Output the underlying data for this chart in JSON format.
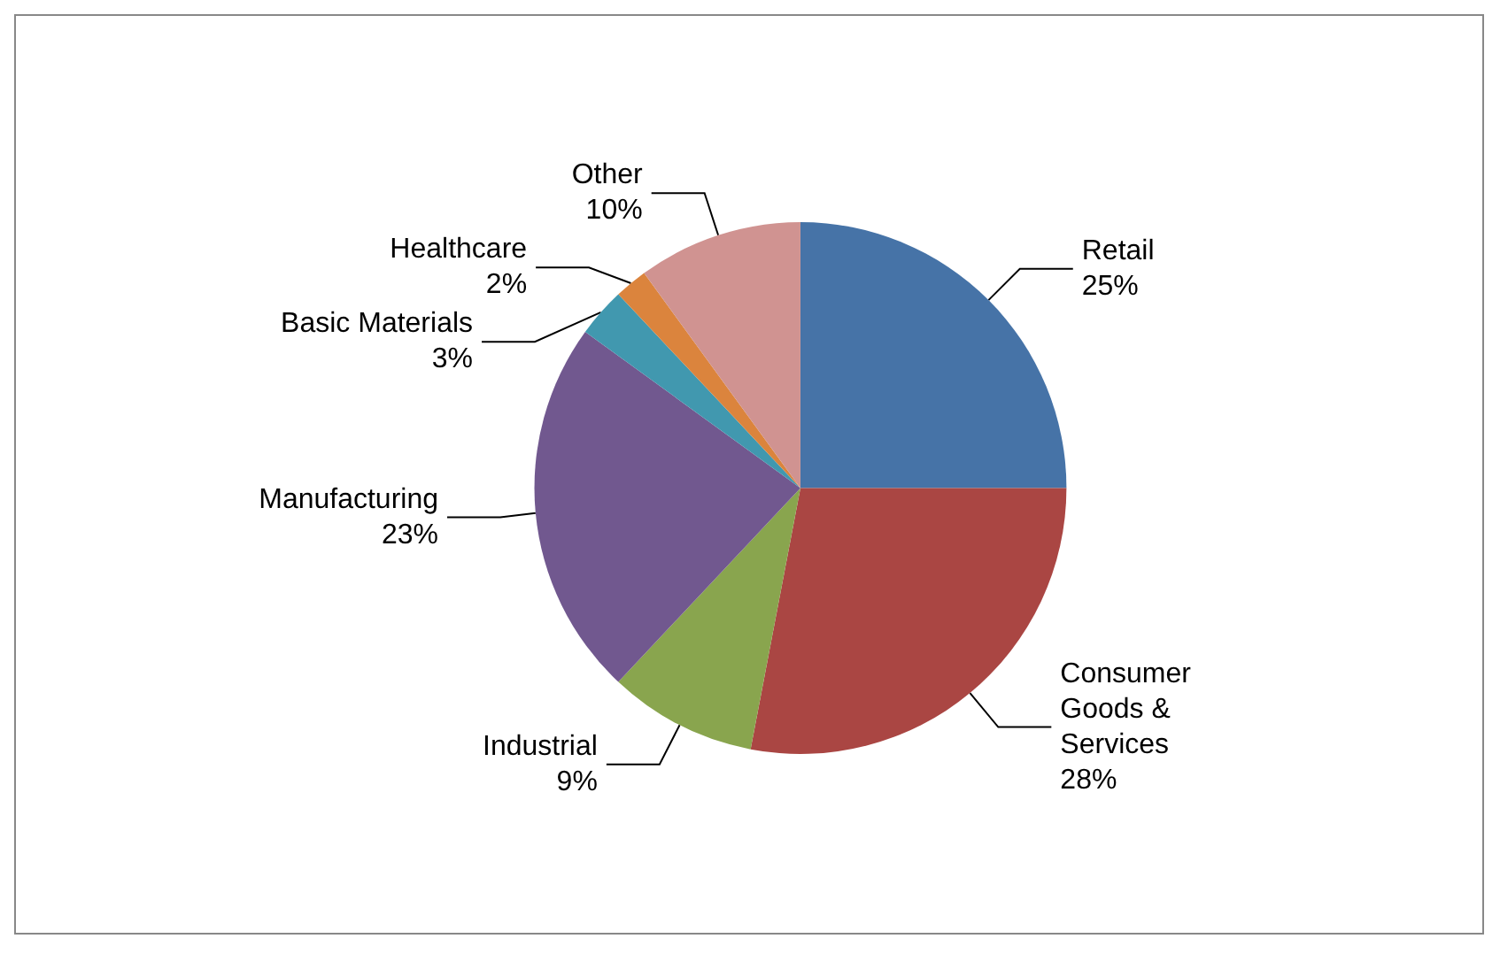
{
  "chart_data": {
    "type": "pie",
    "categories": [
      "Retail",
      "Consumer Goods & Services",
      "Industrial",
      "Manufacturing",
      "Basic Materials",
      "Healthcare",
      "Other"
    ],
    "values": [
      25,
      28,
      9,
      23,
      3,
      2,
      10
    ],
    "value_labels": [
      "25%",
      "28%",
      "9%",
      "23%",
      "3%",
      "2%",
      "10%"
    ],
    "colors": [
      "#4673a7",
      "#aa4643",
      "#89a54e",
      "#71588f",
      "#4198af",
      "#db843d",
      "#d09391"
    ],
    "legend": false
  }
}
